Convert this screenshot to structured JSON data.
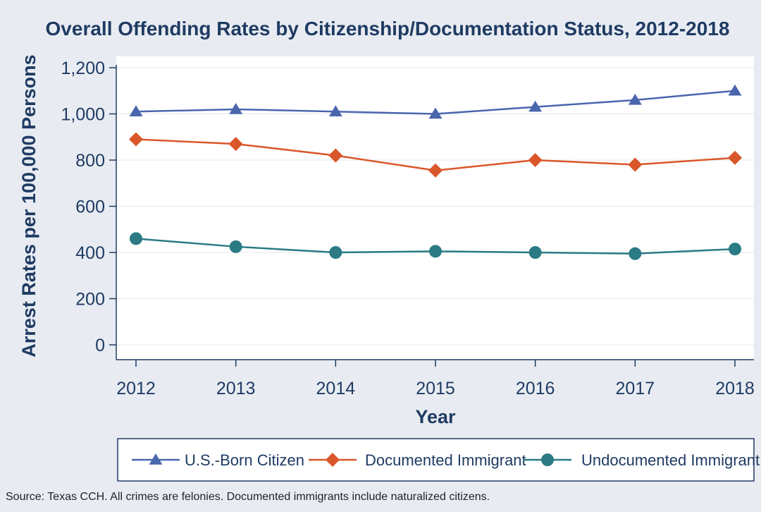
{
  "colors": {
    "background": "#e8ecf2",
    "plot_background": "#ffffff",
    "text": "#1f3b63",
    "axis": "#1f3b63",
    "gridline": "#e3e7ee",
    "legend_border": "#1f3b63"
  },
  "chart_data": {
    "type": "line",
    "title": "Overall Offending Rates by Citizenship/Documentation Status, 2012-2018",
    "xlabel": "Year",
    "ylabel": "Arrest Rates per 100,000 Persons",
    "categories": [
      "2012",
      "2013",
      "2014",
      "2015",
      "2016",
      "2017",
      "2018"
    ],
    "ylim": [
      0,
      1200
    ],
    "yticks": [
      0,
      200,
      400,
      600,
      800,
      1000,
      1200
    ],
    "ytick_labels": [
      "0",
      "200",
      "400",
      "600",
      "800",
      "1,000",
      "1,200"
    ],
    "grid": true,
    "legend_position": "bottom",
    "series": [
      {
        "name": "U.S.-Born Citizen",
        "marker": "triangle",
        "color": "#4a66ad",
        "values": [
          1010,
          1020,
          1010,
          1000,
          1030,
          1060,
          1100
        ]
      },
      {
        "name": "Documented Immigrant",
        "marker": "diamond",
        "color": "#d9572a",
        "values": [
          890,
          870,
          820,
          755,
          800,
          780,
          810
        ]
      },
      {
        "name": "Undocumented Immigrant",
        "marker": "circle",
        "color": "#2b7a84",
        "values": [
          460,
          425,
          400,
          405,
          400,
          395,
          415
        ]
      }
    ],
    "source_note": "Source: Texas CCH. All crimes are felonies. Documented immigrants include naturalized citizens."
  }
}
